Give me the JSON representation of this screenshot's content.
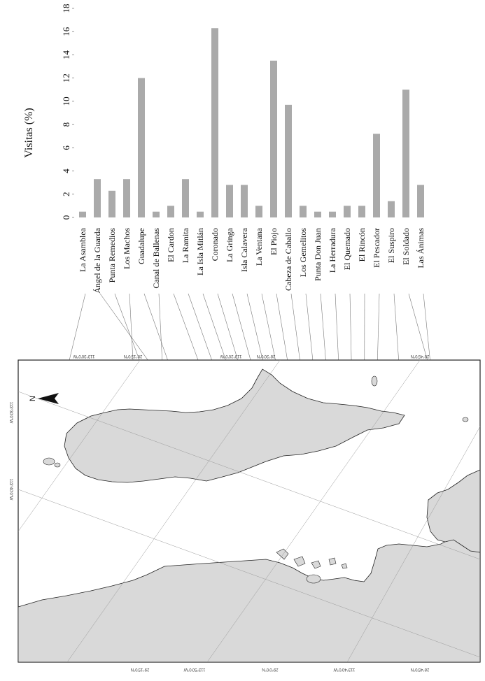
{
  "chart_data": {
    "type": "bar",
    "orientation": "rotated-90-clockwise",
    "ylabel": "Visitas (%)",
    "ylim": [
      0,
      18
    ],
    "yticks": [
      0,
      2,
      4,
      6,
      8,
      10,
      12,
      14,
      16,
      18
    ],
    "categories": [
      "La Asamblea",
      "Ángel de la Guarda",
      "Punta Remedios",
      "Los Machos",
      "Guadalupe",
      "Canal de Ballenas",
      "El Cardon",
      "La Ramita",
      "La Isla Mitlán",
      "Coronado",
      "La Gringa",
      "Isla Calavera",
      "La Ventana",
      "El Piojo",
      "Cabeza de Caballo",
      "Los Gemelitos",
      "Punta Don Juan",
      "La Herradura",
      "El Quemado",
      "El Rincón",
      "El Pescador",
      "El Suspiro",
      "El Soldado",
      "Las Ánimas"
    ],
    "values": [
      0.5,
      3.3,
      2.3,
      3.3,
      12.0,
      0.5,
      1.0,
      3.3,
      0.5,
      16.3,
      2.8,
      2.8,
      1.0,
      13.5,
      9.7,
      1.0,
      0.5,
      0.5,
      1.0,
      1.0,
      7.2,
      1.4,
      11.0,
      2.8
    ],
    "grid": false,
    "legend": "none",
    "bar_color": "#aaaaaa"
  },
  "map": {
    "lat_labels_top": [
      "28°30'0\"N",
      "28°45'0\"N",
      "28°15'0\"N"
    ],
    "lon_labels_top": [
      "113°30'0\"W",
      "113°20'0\"W"
    ],
    "lat_labels_bottom": [
      "28°45'0\"N",
      "29°0'0\"N",
      "29°15'0\"N"
    ],
    "lon_labels_bottom": [
      "113°40'0\"W",
      "113°50'0\"W"
    ],
    "lon_labels_left": [
      "113°30'0\"W",
      "113°40'0\"W"
    ],
    "north_label": "N",
    "land_color": "#d9d9d9",
    "water_color": "#ffffff"
  }
}
